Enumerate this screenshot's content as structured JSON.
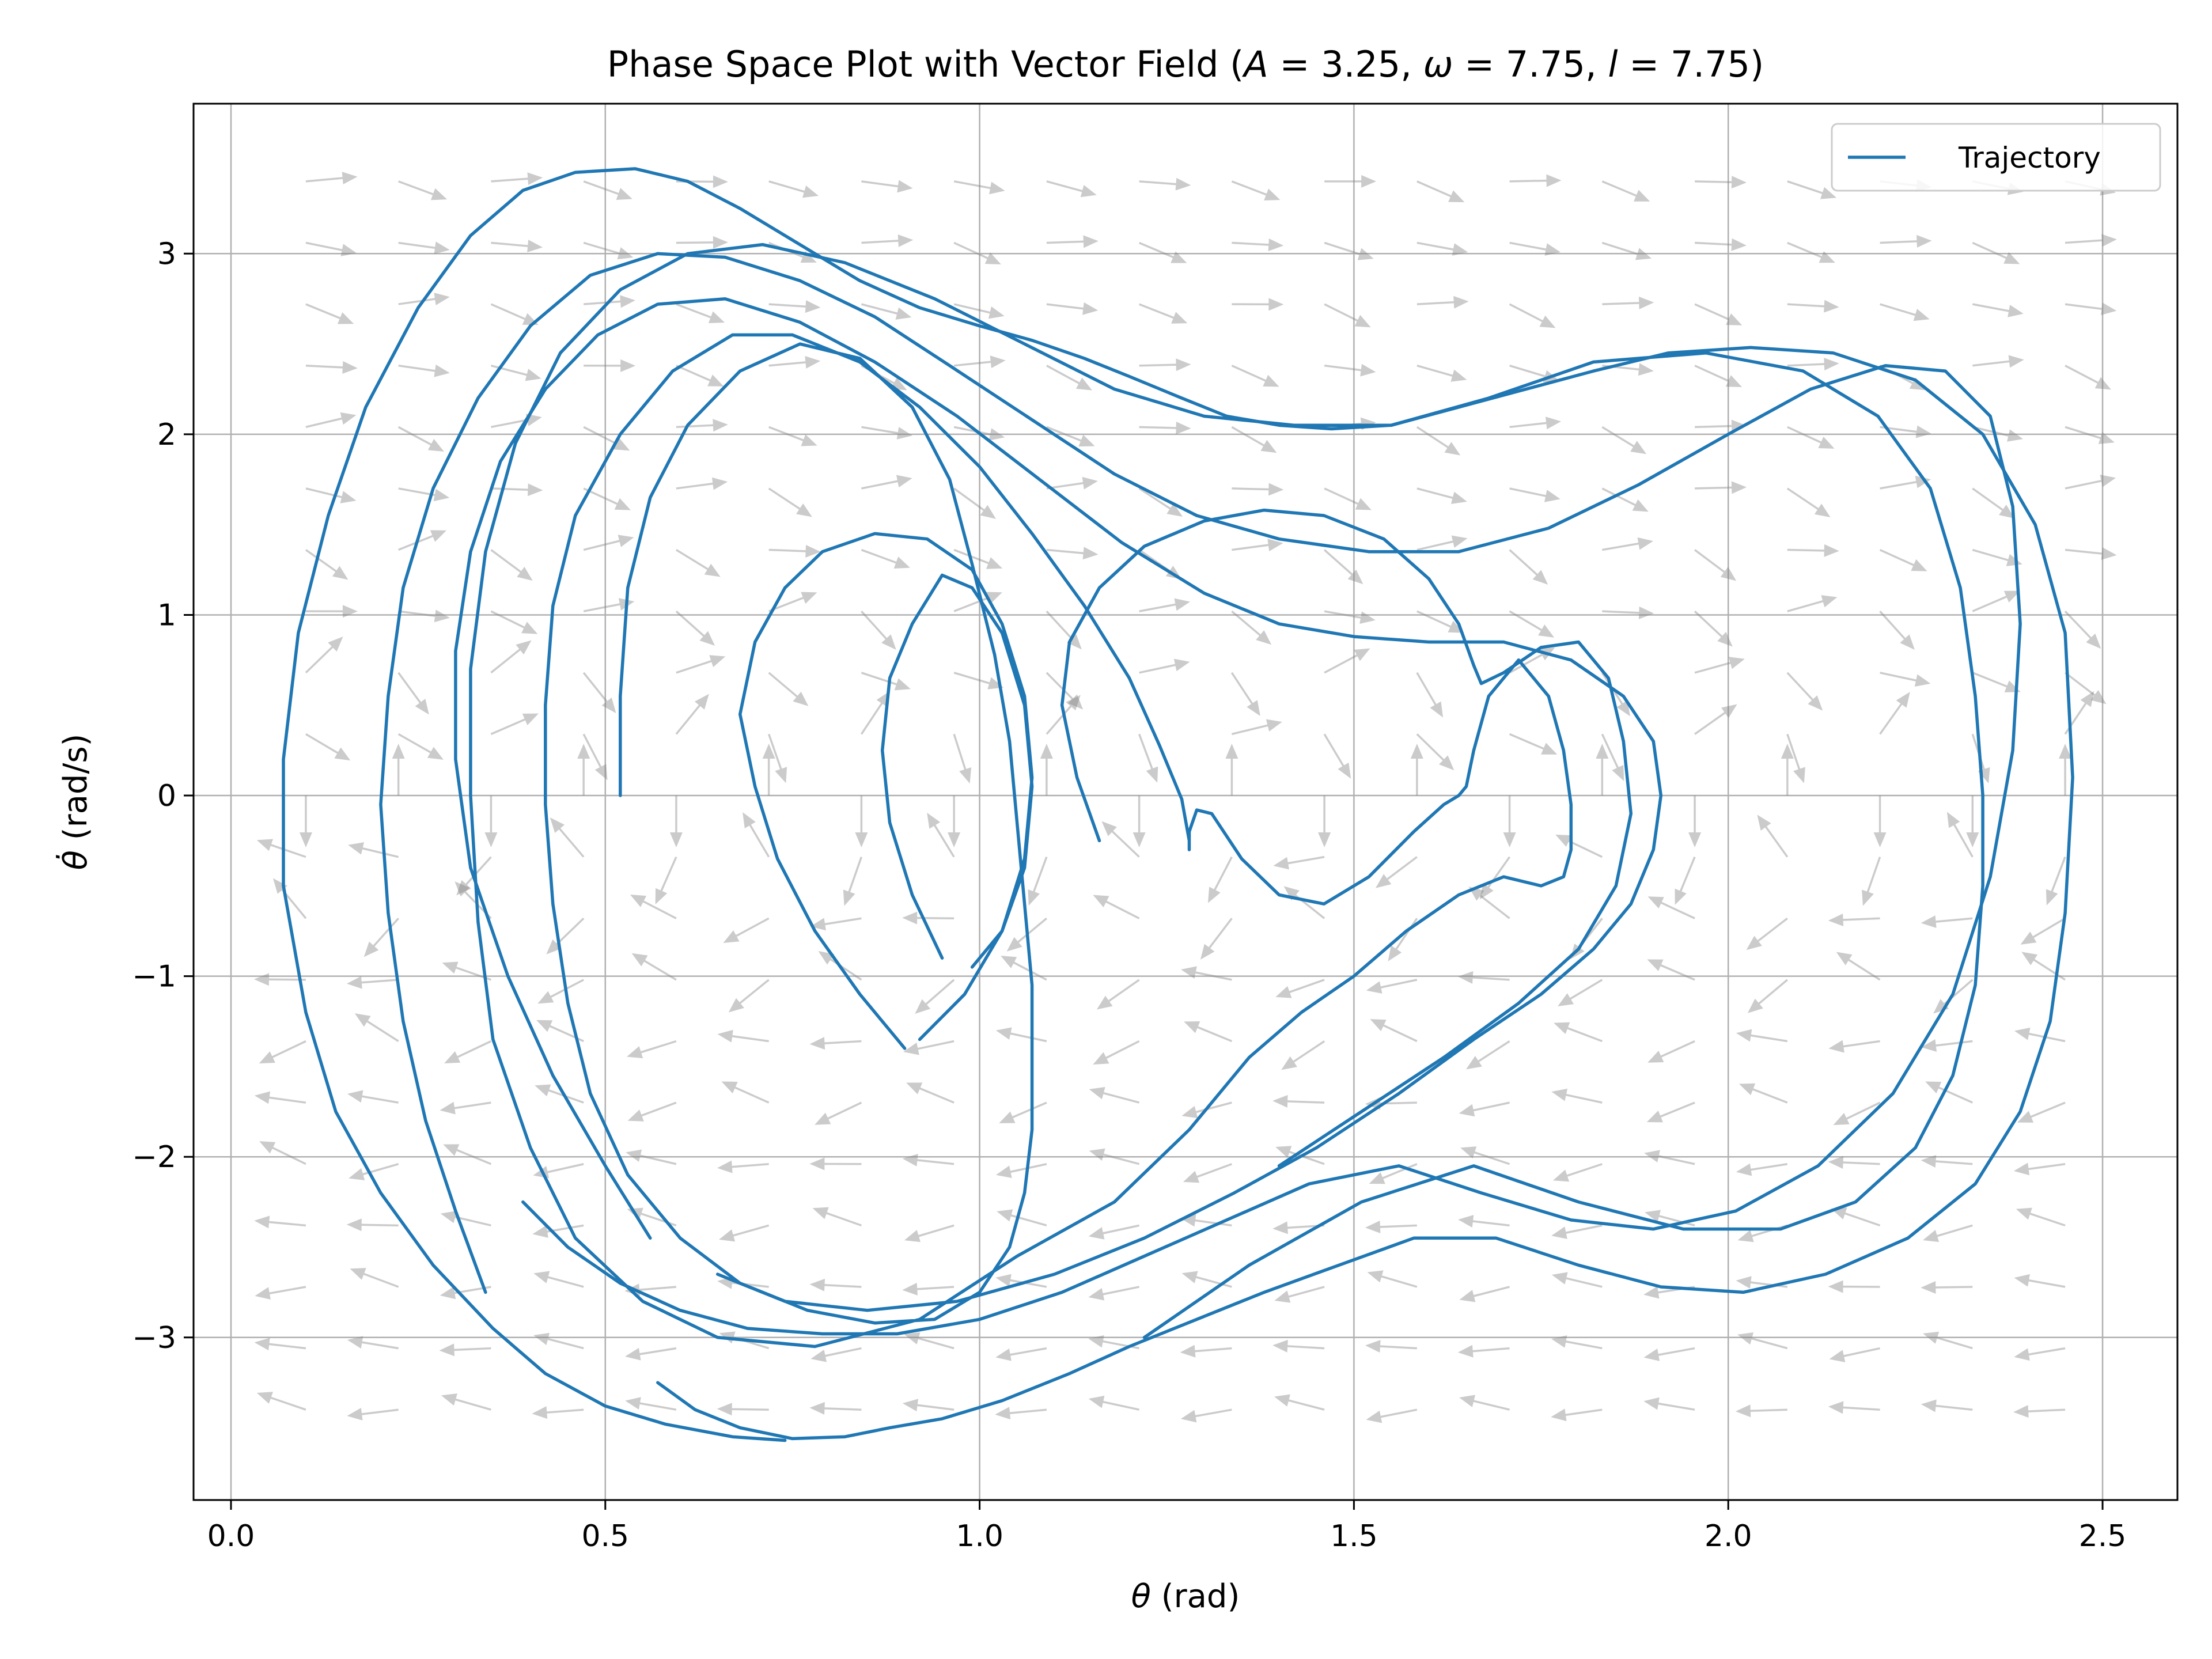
{
  "chart_data": {
    "type": "line",
    "title": "Phase Space Plot with Vector Field (A = 3.25, ω = 7.75, l = 7.75)",
    "title_parts": {
      "prefix": "Phase Space Plot with Vector Field (",
      "A_sym": "A",
      "A_val": " = 3.25, ",
      "w_sym": "ω",
      "w_val": " = 7.75, ",
      "l_sym": "l",
      "l_val": " = 7.75)"
    },
    "xlabel": {
      "sym": "θ",
      "unit": " (rad)"
    },
    "ylabel": {
      "sym": "θ̇",
      "unit": " (rad/s)"
    },
    "xlim": [
      -0.05,
      2.6
    ],
    "ylim": [
      -3.9,
      3.83
    ],
    "xticks": [
      0.0,
      0.5,
      1.0,
      1.5,
      2.0,
      2.5
    ],
    "xtick_labels": [
      "0.0",
      "0.5",
      "1.0",
      "1.5",
      "2.0",
      "2.5"
    ],
    "yticks": [
      -3,
      -2,
      -1,
      0,
      1,
      2,
      3
    ],
    "ytick_labels": [
      "−3",
      "−2",
      "−1",
      "0",
      "1",
      "2",
      "3"
    ],
    "grid": true,
    "legend": {
      "placement": "top-right",
      "entries": [
        "Trajectory"
      ]
    },
    "series": [
      {
        "name": "Trajectory",
        "color": "#1f77b4",
        "x": [
          0.52,
          0.52,
          0.53,
          0.56,
          0.61,
          0.68,
          0.76,
          0.84,
          0.91,
          0.96,
          0.99,
          1.02,
          1.04,
          1.05,
          1.06,
          1.07,
          1.07,
          1.07,
          1.06,
          1.04,
          1.0,
          0.94,
          0.86,
          0.77,
          0.68,
          0.6,
          0.53,
          0.48,
          0.45,
          0.43,
          0.42,
          0.42,
          0.43,
          0.46,
          0.52,
          0.59,
          0.67,
          0.75,
          0.84,
          0.92,
          1.0,
          1.07,
          1.14,
          1.2,
          1.24,
          1.27,
          1.28,
          1.28,
          1.28,
          1.29,
          1.31,
          1.35,
          1.4,
          1.46,
          1.52,
          1.58,
          1.62,
          1.64,
          1.65,
          1.66,
          1.68,
          1.72,
          1.76,
          1.78,
          1.79,
          1.79,
          1.78,
          1.75,
          1.7,
          1.64,
          1.57,
          1.5,
          1.43,
          1.36,
          1.28,
          1.18,
          1.05,
          0.92,
          0.78,
          0.65,
          0.55,
          0.46,
          0.4,
          0.35,
          0.33,
          0.32,
          0.32,
          0.34,
          0.38,
          0.44,
          0.52,
          0.61,
          0.71,
          0.82,
          0.94,
          1.06,
          1.18,
          1.3,
          1.42,
          1.55,
          1.68,
          1.82,
          1.97,
          2.1,
          2.2,
          2.27,
          2.31,
          2.33,
          2.34,
          2.34,
          2.33,
          2.3,
          2.25,
          2.17,
          2.07,
          1.94,
          1.8,
          1.66,
          1.51,
          1.36,
          1.22
        ],
        "y": [
          0.0,
          0.55,
          1.15,
          1.65,
          2.05,
          2.35,
          2.5,
          2.42,
          2.15,
          1.75,
          1.28,
          0.78,
          0.3,
          -0.15,
          -0.6,
          -1.05,
          -1.45,
          -1.85,
          -2.2,
          -2.5,
          -2.75,
          -2.9,
          -2.92,
          -2.85,
          -2.7,
          -2.45,
          -2.1,
          -1.65,
          -1.15,
          -0.6,
          -0.05,
          0.5,
          1.05,
          1.55,
          2.0,
          2.35,
          2.55,
          2.55,
          2.4,
          2.15,
          1.82,
          1.45,
          1.05,
          0.65,
          0.28,
          -0.02,
          -0.25,
          -0.3,
          -0.2,
          -0.08,
          -0.1,
          -0.35,
          -0.55,
          -0.6,
          -0.45,
          -0.2,
          -0.05,
          0.0,
          0.05,
          0.25,
          0.55,
          0.75,
          0.55,
          0.25,
          -0.05,
          -0.3,
          -0.45,
          -0.5,
          -0.45,
          -0.55,
          -0.75,
          -1.0,
          -1.2,
          -1.45,
          -1.85,
          -2.25,
          -2.55,
          -2.9,
          -3.05,
          -3.0,
          -2.8,
          -2.45,
          -1.95,
          -1.35,
          -0.7,
          0.0,
          0.7,
          1.35,
          1.95,
          2.45,
          2.8,
          3.0,
          3.05,
          2.95,
          2.75,
          2.5,
          2.25,
          2.1,
          2.05,
          2.05,
          2.2,
          2.4,
          2.45,
          2.35,
          2.1,
          1.7,
          1.15,
          0.55,
          0.0,
          -0.5,
          -1.05,
          -1.55,
          -1.95,
          -2.25,
          -2.4,
          -2.4,
          -2.25,
          -2.05,
          -2.25,
          -2.6,
          -3.0
        ]
      },
      {
        "name": "",
        "color": "#1f77b4",
        "x": [
          0.74,
          0.67,
          0.58,
          0.5,
          0.42,
          0.35,
          0.27,
          0.2,
          0.14,
          0.1,
          0.07,
          0.07,
          0.09,
          0.13,
          0.18,
          0.25,
          0.32,
          0.39,
          0.46,
          0.54,
          0.61,
          0.68,
          0.76,
          0.84,
          0.92,
          1.0,
          1.07,
          1.14,
          1.2,
          1.27,
          1.33,
          1.4,
          1.47,
          1.55,
          1.64,
          1.73,
          1.82,
          1.92,
          2.03,
          2.14,
          2.25,
          2.34,
          2.41,
          2.45,
          2.46,
          2.45,
          2.43,
          2.39,
          2.33,
          2.24,
          2.13,
          2.02,
          1.91,
          1.8,
          1.69,
          1.58,
          1.48,
          1.38,
          1.29,
          1.2,
          1.12,
          1.03,
          0.95,
          0.88,
          0.82,
          0.75,
          0.68,
          0.62,
          0.57
        ],
        "y": [
          -3.57,
          -3.55,
          -3.48,
          -3.38,
          -3.2,
          -2.95,
          -2.6,
          -2.2,
          -1.75,
          -1.2,
          -0.5,
          0.2,
          0.9,
          1.55,
          2.15,
          2.7,
          3.1,
          3.35,
          3.45,
          3.47,
          3.4,
          3.25,
          3.05,
          2.85,
          2.7,
          2.6,
          2.52,
          2.42,
          2.32,
          2.2,
          2.1,
          2.05,
          2.03,
          2.05,
          2.15,
          2.25,
          2.35,
          2.45,
          2.48,
          2.45,
          2.3,
          2.0,
          1.5,
          0.9,
          0.1,
          -0.65,
          -1.25,
          -1.75,
          -2.15,
          -2.45,
          -2.65,
          -2.75,
          -2.72,
          -2.6,
          -2.45,
          -2.45,
          -2.6,
          -2.75,
          -2.9,
          -3.05,
          -3.2,
          -3.35,
          -3.45,
          -3.5,
          -3.55,
          -3.56,
          -3.5,
          -3.4,
          -3.25
        ]
      },
      {
        "name": "",
        "color": "#1f77b4",
        "x": [
          0.34,
          0.3,
          0.26,
          0.23,
          0.21,
          0.2,
          0.21,
          0.23,
          0.27,
          0.33,
          0.4,
          0.48,
          0.57,
          0.66,
          0.76,
          0.86,
          0.96,
          1.07,
          1.18,
          1.29,
          1.4,
          1.52,
          1.64,
          1.76,
          1.88,
          2.0,
          2.11,
          2.21,
          2.29,
          2.35,
          2.38,
          2.39,
          2.38,
          2.35,
          2.3,
          2.22,
          2.12,
          2.01,
          1.9,
          1.79,
          1.67,
          1.56,
          1.44,
          1.33,
          1.22,
          1.11,
          1.0,
          0.89,
          0.79,
          0.69,
          0.6,
          0.52,
          0.45,
          0.39
        ],
        "y": [
          -2.75,
          -2.3,
          -1.8,
          -1.25,
          -0.65,
          -0.05,
          0.55,
          1.15,
          1.7,
          2.2,
          2.6,
          2.88,
          3.0,
          2.98,
          2.85,
          2.65,
          2.38,
          2.08,
          1.78,
          1.55,
          1.42,
          1.35,
          1.35,
          1.48,
          1.72,
          2.0,
          2.25,
          2.38,
          2.35,
          2.1,
          1.6,
          0.95,
          0.25,
          -0.45,
          -1.1,
          -1.65,
          -2.05,
          -2.3,
          -2.4,
          -2.35,
          -2.2,
          -2.05,
          -2.15,
          -2.35,
          -2.55,
          -2.75,
          -2.9,
          -2.98,
          -2.98,
          -2.95,
          -2.85,
          -2.7,
          -2.5,
          -2.25
        ]
      },
      {
        "name": "",
        "color": "#1f77b4",
        "x": [
          0.56,
          0.5,
          0.43,
          0.37,
          0.32,
          0.3,
          0.3,
          0.32,
          0.36,
          0.42,
          0.49,
          0.57,
          0.66,
          0.76,
          0.86,
          0.97,
          1.08,
          1.19,
          1.3,
          1.4,
          1.5,
          1.6,
          1.7,
          1.79,
          1.86,
          1.9,
          1.91,
          1.9,
          1.87,
          1.82,
          1.75,
          1.66,
          1.56,
          1.45,
          1.34,
          1.22,
          1.1,
          0.97,
          0.85,
          0.74,
          0.65
        ],
        "y": [
          -2.45,
          -2.05,
          -1.55,
          -1.0,
          -0.4,
          0.2,
          0.8,
          1.35,
          1.85,
          2.25,
          2.55,
          2.72,
          2.75,
          2.62,
          2.4,
          2.1,
          1.75,
          1.4,
          1.12,
          0.95,
          0.88,
          0.85,
          0.85,
          0.75,
          0.55,
          0.3,
          0.0,
          -0.3,
          -0.6,
          -0.85,
          -1.1,
          -1.35,
          -1.65,
          -1.95,
          -2.2,
          -2.45,
          -2.65,
          -2.8,
          -2.85,
          -2.8,
          -2.65
        ]
      },
      {
        "name": "",
        "color": "#1f77b4",
        "x": [
          0.9,
          0.84,
          0.78,
          0.73,
          0.7,
          0.68,
          0.7,
          0.74,
          0.79,
          0.86,
          0.93,
          0.99,
          1.03,
          1.06,
          1.07,
          1.06,
          1.03,
          0.98,
          0.92
        ],
        "y": [
          -1.4,
          -1.1,
          -0.75,
          -0.35,
          0.05,
          0.45,
          0.85,
          1.15,
          1.35,
          1.45,
          1.42,
          1.25,
          0.95,
          0.55,
          0.1,
          -0.35,
          -0.75,
          -1.1,
          -1.35
        ]
      },
      {
        "name": "",
        "color": "#1f77b4",
        "x": [
          0.95,
          0.91,
          0.88,
          0.87,
          0.88,
          0.91,
          0.95,
          0.99,
          1.03,
          1.06,
          1.07,
          1.06,
          1.03,
          0.99
        ],
        "y": [
          -0.9,
          -0.55,
          -0.15,
          0.25,
          0.65,
          0.95,
          1.22,
          1.15,
          0.9,
          0.5,
          0.05,
          -0.4,
          -0.75,
          -0.95
        ]
      },
      {
        "name": "",
        "color": "#1f77b4",
        "x": [
          1.16,
          1.13,
          1.11,
          1.12,
          1.16,
          1.22,
          1.3,
          1.38,
          1.46,
          1.54,
          1.6,
          1.64,
          1.66,
          1.67,
          1.7,
          1.75,
          1.8,
          1.84,
          1.86,
          1.87,
          1.85,
          1.8,
          1.72,
          1.62,
          1.51,
          1.4
        ],
        "y": [
          -0.25,
          0.1,
          0.5,
          0.85,
          1.15,
          1.38,
          1.52,
          1.58,
          1.55,
          1.42,
          1.2,
          0.95,
          0.72,
          0.62,
          0.68,
          0.82,
          0.85,
          0.65,
          0.3,
          -0.1,
          -0.5,
          -0.85,
          -1.15,
          -1.45,
          -1.75,
          -2.05
        ]
      }
    ],
    "vector_field": {
      "color": "#808080",
      "opacity": 0.4,
      "x_range": [
        0.1,
        2.45
      ],
      "y_range": [
        -3.4,
        3.4
      ],
      "nx": 20,
      "ny": 21,
      "model": "damped driven pendulum, A = 3.25, ω = 7.75, l = 7.75"
    }
  }
}
